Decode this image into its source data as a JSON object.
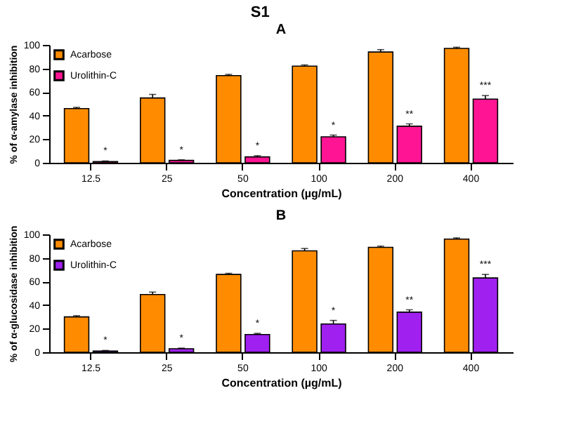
{
  "chart_data": [
    {
      "type": "bar",
      "title": "S1",
      "subtitle": "A",
      "xlabel": "Concentration (µg/mL)",
      "ylabel": "% of α-amylase inhibition",
      "categories": [
        "12.5",
        "25",
        "50",
        "100",
        "200",
        "400"
      ],
      "series": [
        {
          "name": "Acarbose",
          "color": "#ff8c00",
          "values": [
            46,
            55,
            74,
            82,
            94,
            97
          ],
          "errors": [
            [
              46,
              47
            ],
            [
              55,
              58
            ],
            [
              74,
              75
            ],
            [
              82,
              83
            ],
            [
              94,
              96
            ],
            [
              97,
              98
            ]
          ]
        },
        {
          "name": "Urolithin-C",
          "color": "#ff1493",
          "values": [
            1,
            2,
            5,
            22,
            31,
            54
          ],
          "errors": [
            [
              1,
              1.5
            ],
            [
              2,
              2.5
            ],
            [
              5,
              6
            ],
            [
              22,
              23.5
            ],
            [
              31,
              33
            ],
            [
              54,
              57
            ]
          ]
        }
      ],
      "annotations": [
        {
          "text": "*",
          "x": "12.5",
          "y": 1.5
        },
        {
          "text": "*",
          "x": "25",
          "y": 2.5
        },
        {
          "text": "*",
          "x": "50",
          "y": 6
        },
        {
          "text": "*",
          "x": "100",
          "y": 23.5
        },
        {
          "text": "**",
          "x": "200",
          "y": 33
        },
        {
          "text": "***",
          "x": "400",
          "y": 57
        }
      ],
      "ylim": [
        0,
        100
      ],
      "yticks": [
        0,
        20,
        40,
        60,
        80,
        100
      ],
      "legend": "top left",
      "grid": false
    },
    {
      "type": "bar",
      "title": "B",
      "xlabel": "Concentration (µg/mL)",
      "ylabel": "% of α-glucosidase inhibition",
      "categories": [
        "12.5",
        "25",
        "50",
        "100",
        "200",
        "400"
      ],
      "series": [
        {
          "name": "Acarbose",
          "color": "#ff8c00",
          "values": [
            30,
            49,
            66,
            86,
            89,
            96
          ],
          "errors": [
            [
              30,
              31
            ],
            [
              49,
              51
            ],
            [
              66,
              67
            ],
            [
              86,
              88
            ],
            [
              89,
              90
            ],
            [
              96,
              97
            ]
          ]
        },
        {
          "name": "Urolithin-C",
          "color": "#a020f0",
          "values": [
            1,
            3,
            15,
            24,
            34,
            63
          ],
          "errors": [
            [
              1,
              1.5
            ],
            [
              3,
              3.5
            ],
            [
              15,
              16
            ],
            [
              24,
              27
            ],
            [
              34,
              36
            ],
            [
              63,
              66
            ]
          ]
        }
      ],
      "annotations": [
        {
          "text": "*",
          "x": "12.5",
          "y": 1.5
        },
        {
          "text": "*",
          "x": "25",
          "y": 3.5
        },
        {
          "text": "*",
          "x": "50",
          "y": 16
        },
        {
          "text": "*",
          "x": "100",
          "y": 27
        },
        {
          "text": "**",
          "x": "200",
          "y": 36
        },
        {
          "text": "***",
          "x": "400",
          "y": 66
        }
      ],
      "ylim": [
        0,
        100
      ],
      "yticks": [
        0,
        20,
        40,
        60,
        80,
        100
      ],
      "legend": "top left",
      "grid": false
    }
  ]
}
